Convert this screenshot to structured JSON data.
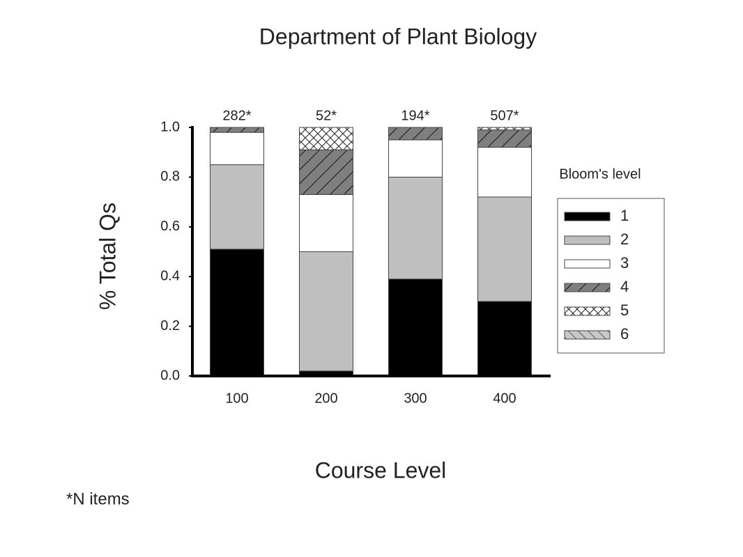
{
  "chart_data": {
    "type": "stacked_bar",
    "title": "Department of Plant Biology",
    "x_label": "Course Level",
    "y_label": "% Total Qs",
    "categories": [
      "100",
      "200",
      "300",
      "400"
    ],
    "annotations": [
      "282*",
      "52*",
      "194*",
      "507*"
    ],
    "footnote": "*N items",
    "legend_title": "Bloom's level",
    "series": [
      {
        "name": "1",
        "color": "#000000",
        "pattern": "none",
        "values": [
          0.51,
          0.02,
          0.39,
          0.3
        ]
      },
      {
        "name": "2",
        "color": "#bfbfbf",
        "pattern": "none",
        "values": [
          0.34,
          0.48,
          0.41,
          0.42
        ]
      },
      {
        "name": "3",
        "color": "#ffffff",
        "pattern": "none",
        "values": [
          0.13,
          0.23,
          0.15,
          0.2
        ]
      },
      {
        "name": "4",
        "color": "#7f7f7f",
        "pattern": "hatch",
        "values": [
          0.02,
          0.18,
          0.05,
          0.07
        ]
      },
      {
        "name": "5",
        "color": "#ffffff",
        "pattern": "cross",
        "values": [
          0,
          0.09,
          0,
          0.01
        ]
      },
      {
        "name": "6",
        "color": "#c8c8c8",
        "pattern": "hatch-reverse",
        "values": [
          0,
          0,
          0,
          0
        ]
      }
    ],
    "ylim": [
      0,
      1
    ],
    "yticks": [
      {
        "value": 0,
        "label": "0.0"
      },
      0.2,
      0.4,
      0.6,
      0.8,
      {
        "value": 1,
        "label": "1.0"
      }
    ],
    "legend": "right",
    "grid": false
  }
}
